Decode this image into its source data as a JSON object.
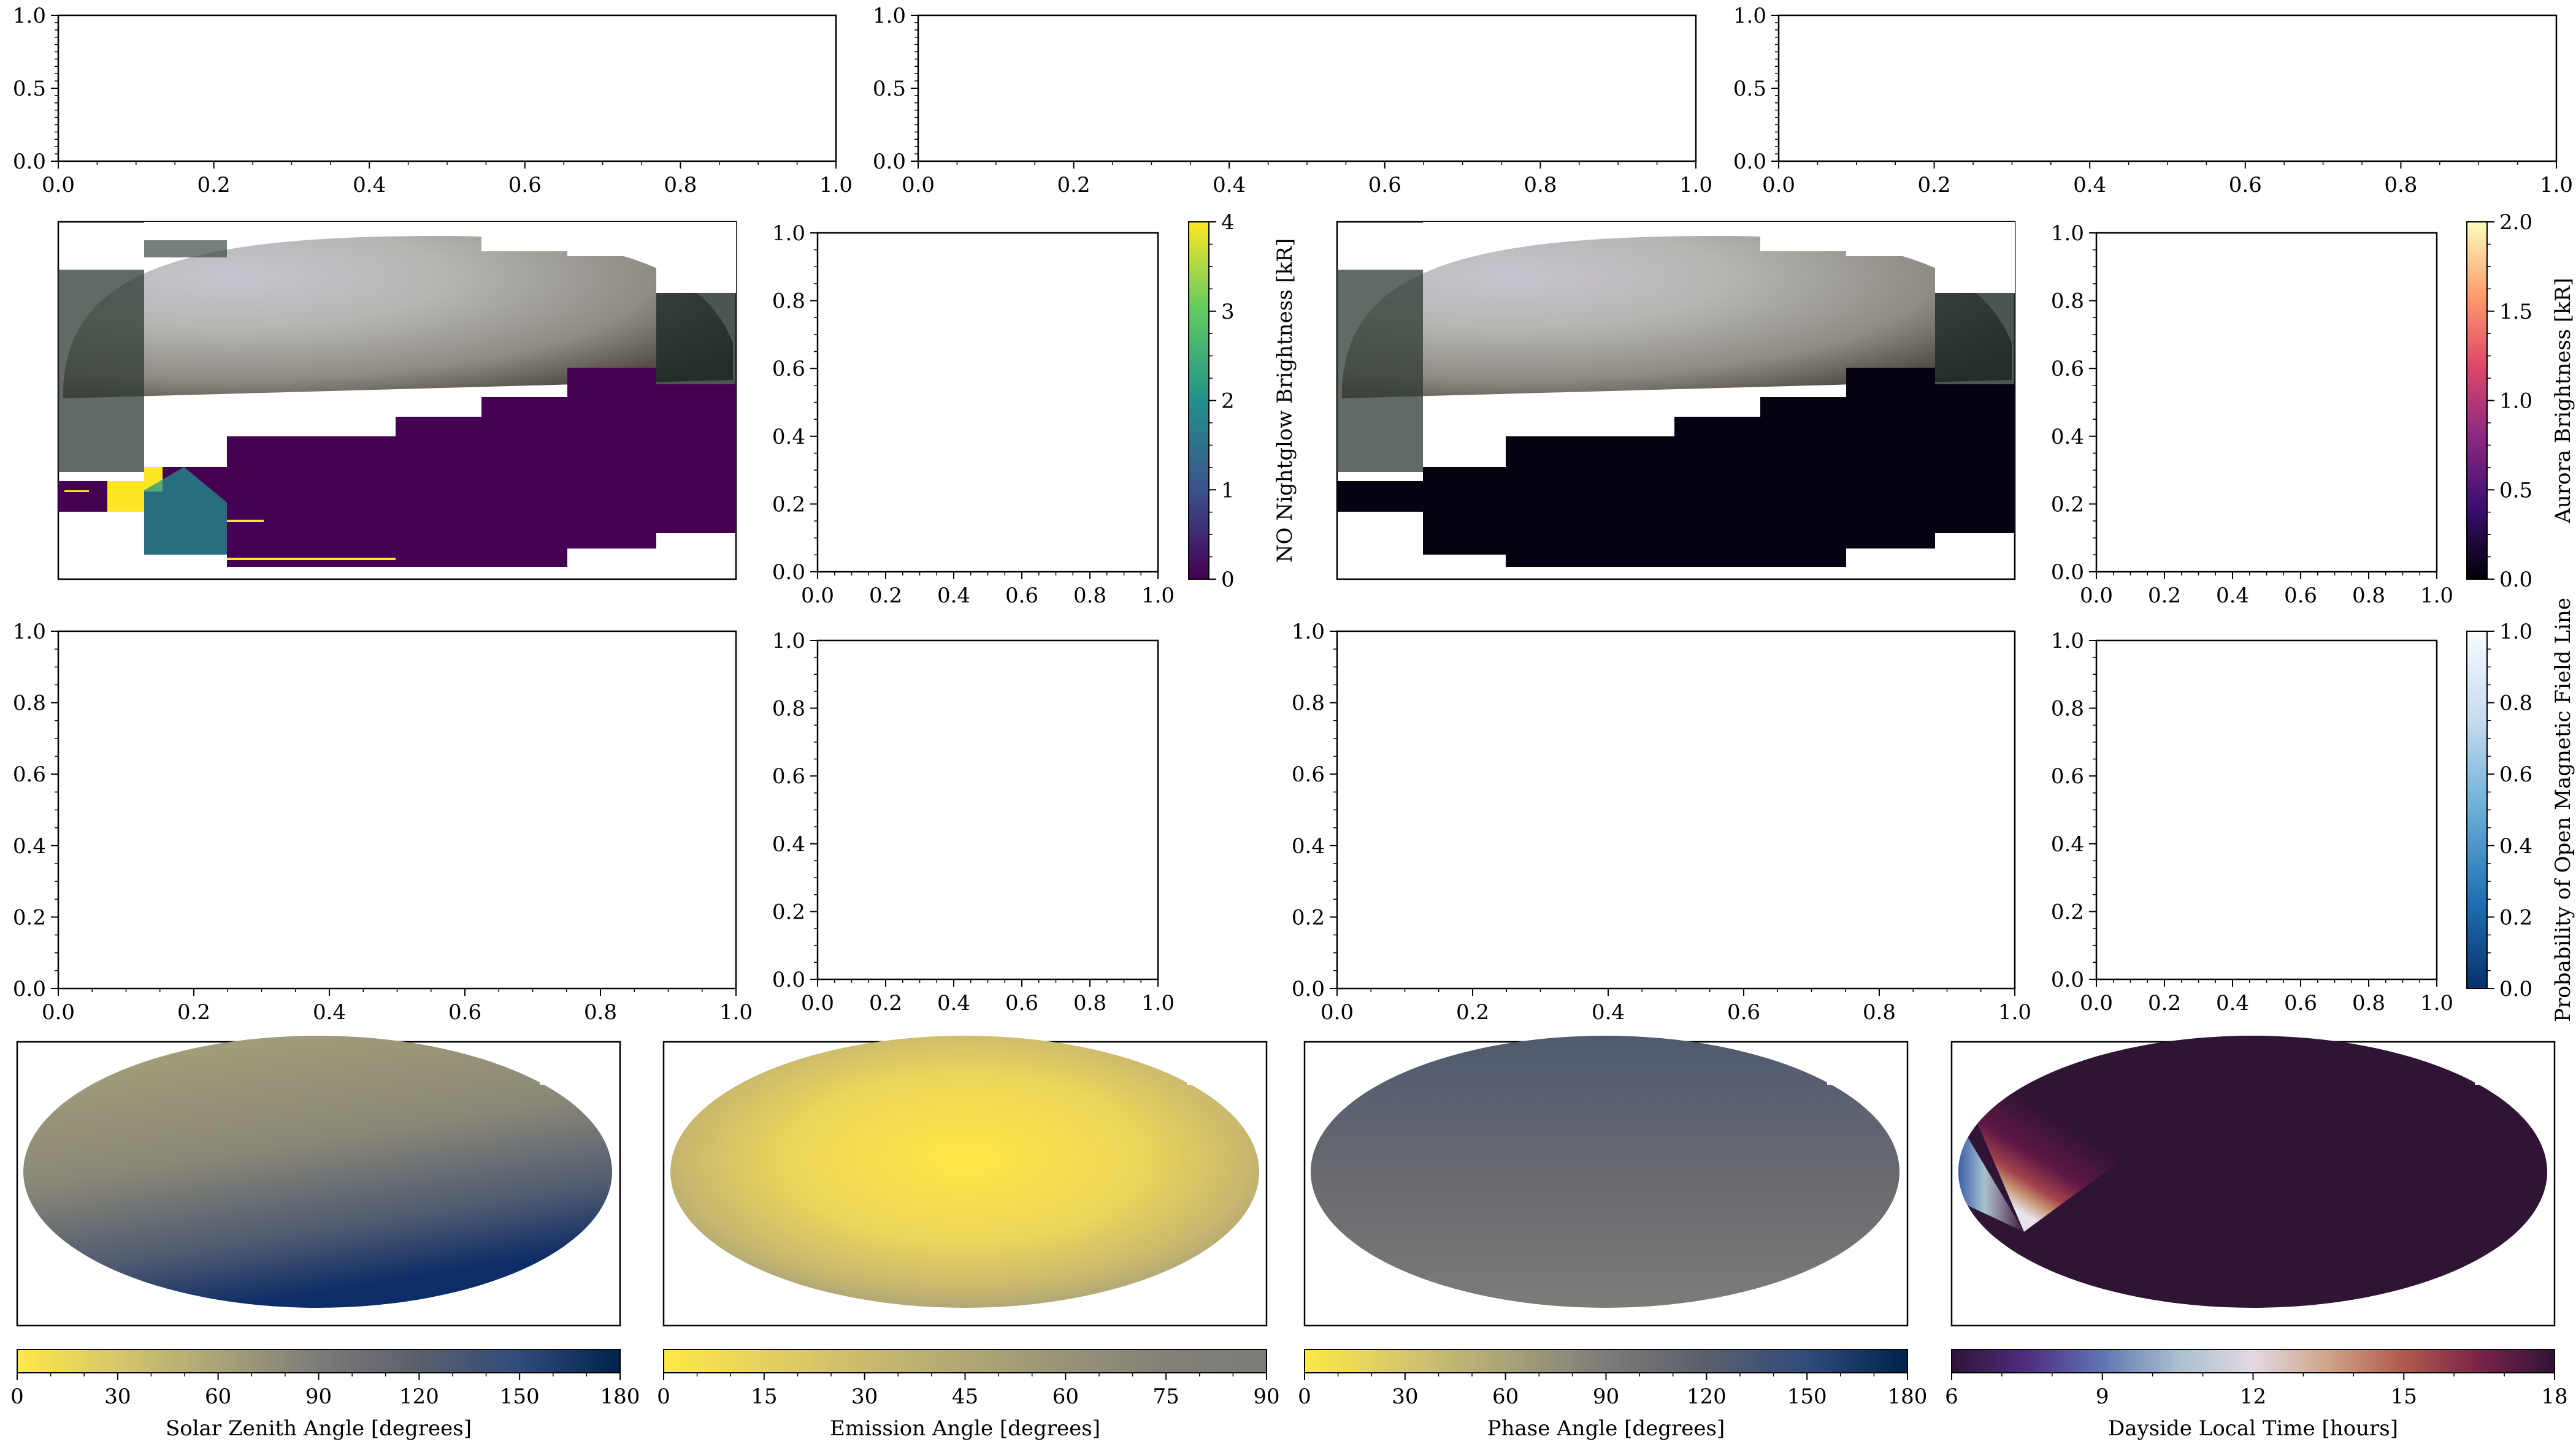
{
  "figure": {
    "tick_values_01_05": [
      "0.0",
      "0.5",
      "1.0"
    ],
    "tick_values_02": [
      "0.0",
      "0.2",
      "0.4",
      "0.6",
      "0.8",
      "1.0"
    ]
  },
  "chart_data": [
    {
      "id": "top-left",
      "type": "scatter",
      "xlim": [
        0,
        1
      ],
      "ylim": [
        0,
        1
      ],
      "grid": false,
      "series": []
    },
    {
      "id": "top-middle",
      "type": "scatter",
      "xlim": [
        0,
        1
      ],
      "ylim": [
        0,
        1
      ],
      "grid": false,
      "series": []
    },
    {
      "id": "top-right",
      "type": "scatter",
      "xlim": [
        0,
        1
      ],
      "ylim": [
        0,
        1
      ],
      "grid": false,
      "series": []
    },
    {
      "id": "nightglow-small",
      "type": "scatter",
      "xlim": [
        0,
        1
      ],
      "ylim": [
        0,
        1
      ],
      "grid": false,
      "series": []
    },
    {
      "id": "aurora-small",
      "type": "scatter",
      "xlim": [
        0,
        1
      ],
      "ylim": [
        0,
        1
      ],
      "grid": false,
      "series": []
    },
    {
      "id": "row3-big-left",
      "type": "scatter",
      "xlim": [
        0,
        1
      ],
      "ylim": [
        0,
        1
      ],
      "grid": false,
      "series": []
    },
    {
      "id": "row3-small-left",
      "type": "scatter",
      "xlim": [
        0,
        1
      ],
      "ylim": [
        0,
        1
      ],
      "grid": false,
      "series": []
    },
    {
      "id": "row3-big-right",
      "type": "scatter",
      "xlim": [
        0,
        1
      ],
      "ylim": [
        0,
        1
      ],
      "grid": false,
      "series": []
    },
    {
      "id": "row3-small-right",
      "type": "scatter",
      "xlim": [
        0,
        1
      ],
      "ylim": [
        0,
        1
      ],
      "grid": false,
      "series": []
    },
    {
      "id": "nightglow-map",
      "type": "heatmap",
      "description_colormap": "viridis",
      "colorbar": {
        "label": "NO Nightglow Brightness [kR]",
        "ticks": [
          "0",
          "1",
          "2",
          "3",
          "4"
        ],
        "range": [
          0,
          4
        ]
      }
    },
    {
      "id": "aurora-map",
      "type": "heatmap",
      "description_colormap": "magma",
      "colorbar": {
        "label": "Aurora Brightness [kR]",
        "ticks": [
          "0.0",
          "0.5",
          "1.0",
          "1.5",
          "2.0"
        ],
        "range": [
          0,
          2
        ]
      }
    },
    {
      "id": "open-field",
      "type": "heatmap",
      "colorbar": {
        "label": "Probability of Open Magnetic Field Line",
        "ticks": [
          "0.0",
          "0.2",
          "0.4",
          "0.6",
          "0.8",
          "1.0"
        ],
        "range": [
          0,
          1
        ]
      }
    },
    {
      "id": "sza-map",
      "type": "heatmap",
      "colorbar": {
        "label": "Solar Zenith Angle [degrees]",
        "ticks": [
          "0",
          "30",
          "60",
          "90",
          "120",
          "150",
          "180"
        ],
        "range": [
          0,
          180
        ]
      }
    },
    {
      "id": "emission-map",
      "type": "heatmap",
      "colorbar": {
        "label": "Emission Angle [degrees]",
        "ticks": [
          "0",
          "15",
          "30",
          "45",
          "60",
          "75",
          "90"
        ],
        "range": [
          0,
          90
        ]
      }
    },
    {
      "id": "phase-map",
      "type": "heatmap",
      "colorbar": {
        "label": "Phase Angle [degrees]",
        "ticks": [
          "0",
          "30",
          "60",
          "90",
          "120",
          "150",
          "180"
        ],
        "range": [
          0,
          180
        ]
      }
    },
    {
      "id": "local-time-map",
      "type": "heatmap",
      "colorbar": {
        "label": "Dayside Local Time [hours]",
        "ticks": [
          "6",
          "9",
          "12",
          "15",
          "18"
        ],
        "range": [
          6,
          18
        ]
      }
    }
  ],
  "colors": {
    "cividis": [
      "#ffe945",
      "#d6c76b",
      "#a9a478",
      "#7c7b78",
      "#5a5f6c",
      "#2f4b7c",
      "#00224e"
    ],
    "cividis_half": [
      "#ffe945",
      "#e6d15f",
      "#cbbb6d",
      "#b0a874",
      "#979378",
      "#838078",
      "#7c7b78"
    ],
    "viridis": [
      "#440154",
      "#3b528b",
      "#21918c",
      "#5ec962",
      "#fde725"
    ],
    "magma": [
      "#000004",
      "#3b0f70",
      "#8c2981",
      "#de4968",
      "#fe9f6d",
      "#fcfdbf"
    ],
    "blues": [
      "#08306b",
      "#2171b5",
      "#6baed6",
      "#c6dbef",
      "#f7fbff"
    ],
    "twilight": [
      "#2f1436",
      "#4f2d80",
      "#5f75b3",
      "#a8c0cf",
      "#e2d9e2",
      "#d0a487",
      "#b05a4c",
      "#7a2349",
      "#2f1436"
    ]
  }
}
